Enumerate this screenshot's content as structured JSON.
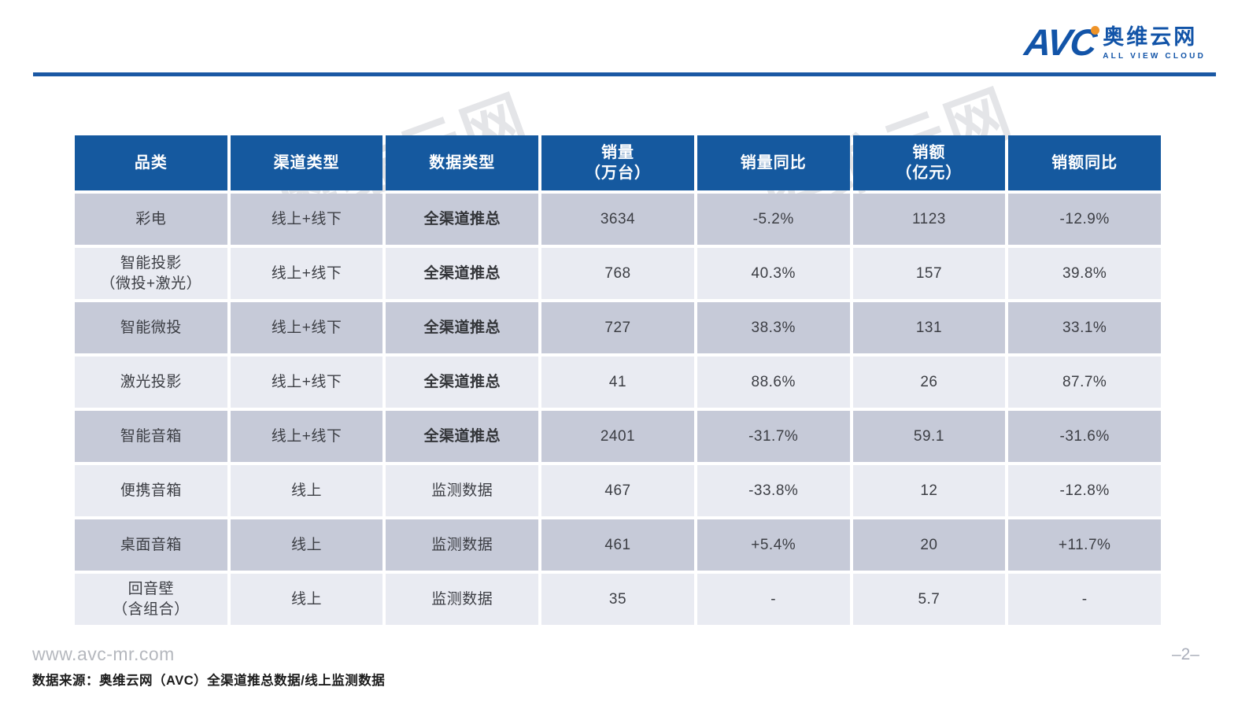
{
  "logo": {
    "abbr": "AVC",
    "name_cn": "奥维云网",
    "name_en": "ALL VIEW CLOUD",
    "brand_blue": "#1254a8",
    "dot_orange": "#ef9327"
  },
  "watermark": {
    "text": "奥维云网"
  },
  "colors": {
    "rule_blue": "#1a58a4",
    "header_bg": "#15599f",
    "row_odd_bg": "#c6cad8",
    "row_even_bg": "#e9ebf2"
  },
  "table": {
    "columns": [
      "品类",
      "渠道类型",
      "数据类型",
      "销量\n（万台）",
      "销量同比",
      "销额\n（亿元）",
      "销额同比"
    ],
    "rows": [
      {
        "category": "彩电",
        "channel": "线上+线下",
        "data_type": "全渠道推总",
        "emphasis": true,
        "volume": "3634",
        "volume_yoy": "-5.2%",
        "amount": "1123",
        "amount_yoy": "-12.9%"
      },
      {
        "category": "智能投影\n（微投+激光）",
        "channel": "线上+线下",
        "data_type": "全渠道推总",
        "emphasis": true,
        "volume": "768",
        "volume_yoy": "40.3%",
        "amount": "157",
        "amount_yoy": "39.8%"
      },
      {
        "category": "智能微投",
        "channel": "线上+线下",
        "data_type": "全渠道推总",
        "emphasis": true,
        "volume": "727",
        "volume_yoy": "38.3%",
        "amount": "131",
        "amount_yoy": "33.1%"
      },
      {
        "category": "激光投影",
        "channel": "线上+线下",
        "data_type": "全渠道推总",
        "emphasis": true,
        "volume": "41",
        "volume_yoy": "88.6%",
        "amount": "26",
        "amount_yoy": "87.7%"
      },
      {
        "category": "智能音箱",
        "channel": "线上+线下",
        "data_type": "全渠道推总",
        "emphasis": true,
        "volume": "2401",
        "volume_yoy": "-31.7%",
        "amount": "59.1",
        "amount_yoy": "-31.6%"
      },
      {
        "category": "便携音箱",
        "channel": "线上",
        "data_type": "监测数据",
        "emphasis": false,
        "volume": "467",
        "volume_yoy": "-33.8%",
        "amount": "12",
        "amount_yoy": "-12.8%"
      },
      {
        "category": "桌面音箱",
        "channel": "线上",
        "data_type": "监测数据",
        "emphasis": false,
        "volume": "461",
        "volume_yoy": "+5.4%",
        "amount": "20",
        "amount_yoy": "+11.7%"
      },
      {
        "category": "回音壁\n（含组合）",
        "channel": "线上",
        "data_type": "监测数据",
        "emphasis": false,
        "volume": "35",
        "volume_yoy": "-",
        "amount": "5.7",
        "amount_yoy": "-"
      }
    ]
  },
  "footer": {
    "website": "www.avc-mr.com",
    "page_number": "–2–",
    "source": "数据来源：奥维云网（AVC）全渠道推总数据/线上监测数据"
  }
}
